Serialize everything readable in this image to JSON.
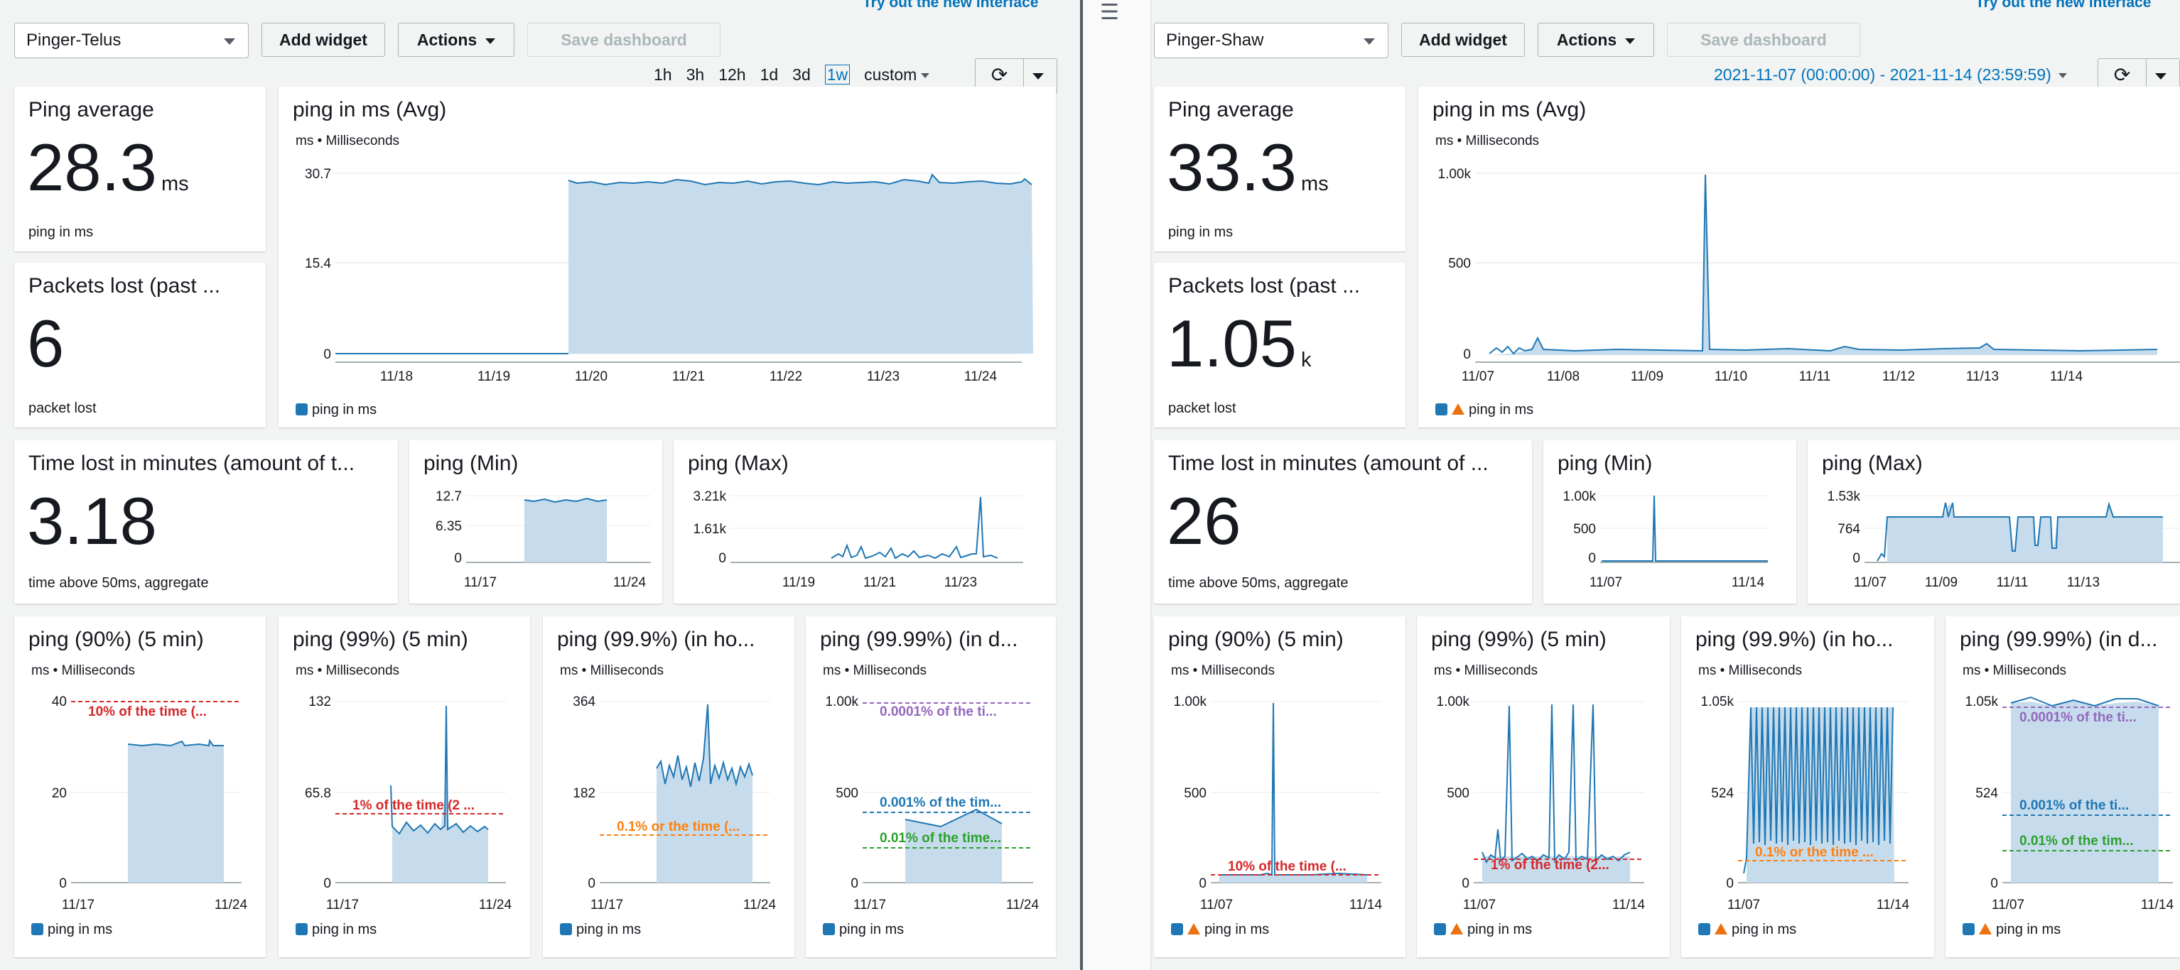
{
  "left": {
    "try_link": "Try out the new interface",
    "dashboard_select": "Pinger-Telus",
    "add_widget": "Add widget",
    "actions": "Actions",
    "save_dashboard": "Save dashboard",
    "time_ranges": [
      "1h",
      "3h",
      "12h",
      "1d",
      "3d",
      "1w",
      "custom"
    ],
    "active_range": "1w",
    "ping_avg": {
      "title": "Ping average",
      "value": "28.3",
      "unit": "ms",
      "caption": "ping in ms"
    },
    "packets": {
      "title": "Packets lost (past ...",
      "value": "6",
      "unit": "",
      "caption": "packet lost"
    },
    "time_lost": {
      "title": "Time lost in minutes (amount of t...",
      "value": "3.18",
      "caption": "time above 50ms, aggregate"
    },
    "widgets": {
      "avg": {
        "title": "ping in ms (Avg)",
        "subtitle": "ms • Milliseconds",
        "yticks": [
          "30.7",
          "15.4",
          "0"
        ],
        "xticks": [
          "11/18",
          "11/19",
          "11/20",
          "11/21",
          "11/22",
          "11/23",
          "11/24"
        ],
        "legend": "ping in ms"
      },
      "min": {
        "title": "ping (Min)",
        "yticks": [
          "12.7",
          "6.35",
          "0"
        ],
        "xticks": [
          "11/17",
          "11/24"
        ]
      },
      "max": {
        "title": "ping (Max)",
        "yticks": [
          "3.21k",
          "1.61k",
          "0"
        ],
        "xticks": [
          "11/19",
          "11/21",
          "11/23"
        ]
      },
      "p90": {
        "title": "ping (90%) (5 min)",
        "subtitle": "ms • Milliseconds",
        "yticks": [
          "40",
          "20",
          "0"
        ],
        "xticks": [
          "11/17",
          "11/24"
        ],
        "annotations": [
          "10% of the time (..."
        ],
        "legend": "ping in ms"
      },
      "p99": {
        "title": "ping (99%) (5 min)",
        "subtitle": "ms • Milliseconds",
        "yticks": [
          "132",
          "65.8",
          "0"
        ],
        "xticks": [
          "11/17",
          "11/24"
        ],
        "annotations": [
          "1% of the time (2 ..."
        ],
        "legend": "ping in ms"
      },
      "p999": {
        "title": "ping (99.9%) (in ho...",
        "subtitle": "ms • Milliseconds",
        "yticks": [
          "364",
          "182",
          "0"
        ],
        "xticks": [
          "11/17",
          "11/24"
        ],
        "annotations": [
          "0.1% or the time (..."
        ],
        "legend": "ping in ms"
      },
      "p9999": {
        "title": "ping (99.99%) (in d...",
        "subtitle": "ms • Milliseconds",
        "yticks": [
          "1.00k",
          "500",
          "0"
        ],
        "xticks": [
          "11/17",
          "11/24"
        ],
        "annotations": [
          "0.0001% of the ti...",
          "0.001% of the tim...",
          "0.01% of the time..."
        ],
        "legend": "ping in ms"
      }
    }
  },
  "right": {
    "try_link": "Try out the new interface",
    "dashboard_select": "Pinger-Shaw",
    "add_widget": "Add widget",
    "actions": "Actions",
    "save_dashboard": "Save dashboard",
    "date_range": "2021-11-07 (00:00:00) - 2021-11-14 (23:59:59)",
    "ping_avg": {
      "title": "Ping average",
      "value": "33.3",
      "unit": "ms",
      "caption": "ping in ms"
    },
    "packets": {
      "title": "Packets lost (past ...",
      "value": "1.05",
      "unit": "k",
      "caption": "packet lost"
    },
    "time_lost": {
      "title": "Time lost in minutes (amount of ...",
      "value": "26",
      "caption": "time above 50ms, aggregate"
    },
    "widgets": {
      "avg": {
        "title": "ping in ms (Avg)",
        "subtitle": "ms • Milliseconds",
        "yticks": [
          "1.00k",
          "500",
          "0"
        ],
        "xticks": [
          "11/07",
          "11/08",
          "11/09",
          "11/10",
          "11/11",
          "11/12",
          "11/13",
          "11/14"
        ],
        "legend": "ping in ms"
      },
      "min": {
        "title": "ping (Min)",
        "yticks": [
          "1.00k",
          "500",
          "0"
        ],
        "xticks": [
          "11/07",
          "11/14"
        ]
      },
      "max": {
        "title": "ping (Max)",
        "yticks": [
          "1.53k",
          "764",
          "0"
        ],
        "xticks": [
          "11/07",
          "11/09",
          "11/11",
          "11/13"
        ]
      },
      "p90": {
        "title": "ping (90%) (5 min)",
        "subtitle": "ms • Milliseconds",
        "yticks": [
          "1.00k",
          "500",
          "0"
        ],
        "xticks": [
          "11/07",
          "11/14"
        ],
        "annotations": [
          "10% of the time (..."
        ],
        "legend": "ping in ms"
      },
      "p99": {
        "title": "ping (99%) (5 min)",
        "subtitle": "ms • Milliseconds",
        "yticks": [
          "1.00k",
          "500",
          "0"
        ],
        "xticks": [
          "11/07",
          "11/14"
        ],
        "annotations": [
          "1% of the time (2..."
        ],
        "legend": "ping in ms"
      },
      "p999": {
        "title": "ping (99.9%) (in ho...",
        "subtitle": "ms • Milliseconds",
        "yticks": [
          "1.05k",
          "524",
          "0"
        ],
        "xticks": [
          "11/07",
          "11/14"
        ],
        "annotations": [
          "0.1% or the time ..."
        ],
        "legend": "ping in ms"
      },
      "p9999": {
        "title": "ping (99.99%) (in d...",
        "subtitle": "ms • Milliseconds",
        "yticks": [
          "1.05k",
          "524",
          "0"
        ],
        "xticks": [
          "11/07",
          "11/14"
        ],
        "annotations": [
          "0.0001% of the ti...",
          "0.001% of the ti...",
          "0.01% of the tim..."
        ],
        "legend": "ping in ms"
      }
    }
  },
  "colors": {
    "series": "#1f77b4",
    "fill": "#c6dcec",
    "red": "#d62728",
    "orange": "#ff7f0e",
    "purple": "#9467bd",
    "blue_dash": "#1f77b4",
    "green": "#2ca02c",
    "link": "#0073bb"
  },
  "icons": [
    "caret-down-icon",
    "refresh-icon",
    "hamburger-icon",
    "warning-icon"
  ],
  "chart_data": [
    {
      "id": "left-avg",
      "type": "area",
      "title": "ping in ms (Avg)",
      "ylabel": "ms • Milliseconds",
      "x": [
        "11/20",
        "11/21",
        "11/22",
        "11/23",
        "11/23 12:00"
      ],
      "series": [
        {
          "name": "ping in ms",
          "values": [
            28.5,
            28.2,
            28.3,
            28.6,
            28.2
          ]
        }
      ],
      "ylim": [
        0,
        30.7
      ]
    },
    {
      "id": "left-min",
      "type": "area",
      "title": "ping (Min)",
      "x": [
        "11/20",
        "11/21",
        "11/22",
        "11/23"
      ],
      "series": [
        {
          "values": [
            11.5,
            11.8,
            11.6,
            11.7
          ]
        }
      ],
      "ylim": [
        0,
        12.7
      ]
    },
    {
      "id": "left-max",
      "type": "line",
      "title": "ping (Max)",
      "x": [
        "11/20",
        "11/21",
        "11/22",
        "11/23"
      ],
      "series": [
        {
          "values": [
            200,
            800,
            600,
            3000
          ]
        }
      ],
      "ylim": [
        0,
        3210
      ]
    },
    {
      "id": "left-p90",
      "type": "area",
      "title": "ping (90%) (5 min)",
      "x": [
        "11/20",
        "11/23"
      ],
      "series": [
        {
          "name": "ping in ms",
          "values": [
            30,
            30
          ]
        }
      ],
      "ylim": [
        0,
        40
      ]
    },
    {
      "id": "left-p99",
      "type": "area",
      "title": "ping (99%) (5 min)",
      "x": [
        "11/20",
        "11/22",
        "11/23"
      ],
      "series": [
        {
          "name": "ping in ms",
          "values": [
            37,
            132,
            40
          ]
        }
      ],
      "ylim": [
        0,
        132
      ]
    },
    {
      "id": "left-p999",
      "type": "area",
      "title": "ping (99.9%) (in ho...",
      "x": [
        "11/20",
        "11/22",
        "11/23"
      ],
      "series": [
        {
          "name": "ping in ms",
          "values": [
            200,
            364,
            230
          ]
        }
      ],
      "ylim": [
        0,
        364
      ]
    },
    {
      "id": "left-p9999",
      "type": "area",
      "title": "ping (99.99%) (in d...",
      "x": [
        "11/20",
        "11/23"
      ],
      "series": [
        {
          "name": "ping in ms",
          "values": [
            250,
            380
          ]
        }
      ],
      "ylim": [
        0,
        1000
      ]
    },
    {
      "id": "right-avg",
      "type": "area",
      "title": "ping in ms (Avg)",
      "ylabel": "ms • Milliseconds",
      "x": [
        "11/07",
        "11/09",
        "11/09 18:00",
        "11/10",
        "11/14"
      ],
      "series": [
        {
          "name": "ping in ms",
          "values": [
            25,
            30,
            1000,
            30,
            28
          ]
        }
      ],
      "ylim": [
        0,
        1000
      ]
    },
    {
      "id": "right-min",
      "type": "line",
      "title": "ping (Min)",
      "x": [
        "11/07",
        "11/09",
        "11/14"
      ],
      "series": [
        {
          "values": [
            10,
            1000,
            10
          ]
        }
      ],
      "ylim": [
        0,
        1000
      ]
    },
    {
      "id": "right-max",
      "type": "area",
      "title": "ping (Max)",
      "x": [
        "11/07",
        "11/09",
        "11/11",
        "11/13"
      ],
      "series": [
        {
          "values": [
            764,
            1000,
            200,
            900
          ]
        }
      ],
      "ylim": [
        0,
        1530
      ]
    },
    {
      "id": "right-p90",
      "type": "area",
      "title": "ping (90%) (5 min)",
      "x": [
        "11/07",
        "11/09",
        "11/14"
      ],
      "series": [
        {
          "name": "ping in ms",
          "values": [
            40,
            1000,
            40
          ]
        }
      ],
      "ylim": [
        0,
        1000
      ]
    },
    {
      "id": "right-p99",
      "type": "area",
      "title": "ping (99%) (5 min)",
      "x": [
        "11/07",
        "11/09",
        "11/11",
        "11/14"
      ],
      "series": [
        {
          "name": "ping in ms",
          "values": [
            100,
            1000,
            1000,
            100
          ]
        }
      ],
      "ylim": [
        0,
        1000
      ]
    },
    {
      "id": "right-p999",
      "type": "area",
      "title": "ping (99.9%) (in ho...",
      "x": [
        "11/07",
        "11/14"
      ],
      "series": [
        {
          "name": "ping in ms",
          "values": [
            1000,
            1000
          ]
        }
      ],
      "ylim": [
        0,
        1050
      ]
    },
    {
      "id": "right-p9999",
      "type": "area",
      "title": "ping (99.99%) (in d...",
      "x": [
        "11/07",
        "11/14"
      ],
      "series": [
        {
          "name": "ping in ms",
          "values": [
            1000,
            1000
          ]
        }
      ],
      "ylim": [
        0,
        1050
      ]
    }
  ]
}
